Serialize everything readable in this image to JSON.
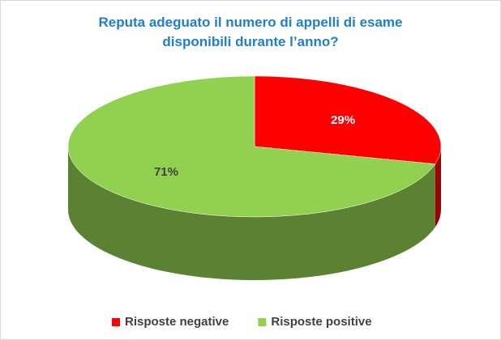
{
  "chart_data": {
    "type": "pie",
    "title": "Reputa adeguato il numero di appelli di esame disponibili durante l’anno?",
    "categories": [
      "Risposte negative",
      "Risposte positive"
    ],
    "values": [
      29,
      71
    ],
    "value_labels": [
      "29%",
      "71%"
    ],
    "colors": [
      "#ff0000",
      "#92d050"
    ],
    "legend": "bottom"
  }
}
